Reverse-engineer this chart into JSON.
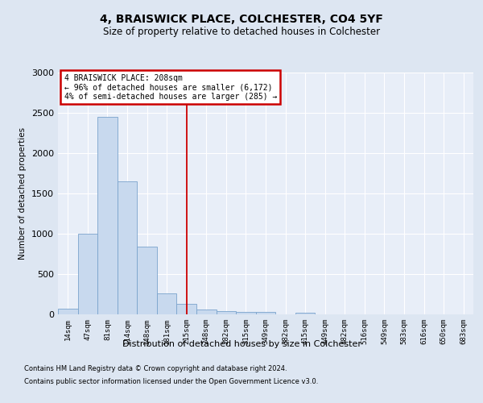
{
  "title1": "4, BRAISWICK PLACE, COLCHESTER, CO4 5YF",
  "title2": "Size of property relative to detached houses in Colchester",
  "xlabel": "Distribution of detached houses by size in Colchester",
  "ylabel": "Number of detached properties",
  "categories": [
    "14sqm",
    "47sqm",
    "81sqm",
    "114sqm",
    "148sqm",
    "181sqm",
    "215sqm",
    "248sqm",
    "282sqm",
    "315sqm",
    "349sqm",
    "382sqm",
    "415sqm",
    "449sqm",
    "482sqm",
    "516sqm",
    "549sqm",
    "583sqm",
    "616sqm",
    "650sqm",
    "683sqm"
  ],
  "values": [
    75,
    1000,
    2450,
    1650,
    840,
    260,
    130,
    60,
    40,
    35,
    30,
    0,
    25,
    0,
    0,
    0,
    0,
    0,
    0,
    0,
    0
  ],
  "bar_color": "#c8d9ee",
  "bar_edge_color": "#7aa3cc",
  "vline_x": 6,
  "vline_color": "#cc0000",
  "annotation_title": "4 BRAISWICK PLACE: 208sqm",
  "annotation_line1": "← 96% of detached houses are smaller (6,172)",
  "annotation_line2": "4% of semi-detached houses are larger (285) →",
  "annotation_box_color": "#cc0000",
  "ylim": [
    0,
    3000
  ],
  "yticks": [
    0,
    500,
    1000,
    1500,
    2000,
    2500,
    3000
  ],
  "footer1": "Contains HM Land Registry data © Crown copyright and database right 2024.",
  "footer2": "Contains public sector information licensed under the Open Government Licence v3.0.",
  "bg_color": "#dde6f2",
  "plot_bg_color": "#e8eef8",
  "grid_color": "#ffffff",
  "title1_fontsize": 10,
  "title2_fontsize": 8.5
}
